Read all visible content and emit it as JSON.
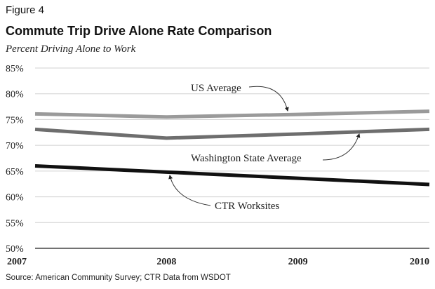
{
  "figure_label": "Figure 4",
  "chart_data": {
    "type": "line",
    "title": "Commute Trip Drive Alone Rate Comparison",
    "ylabel": "Percent Driving Alone to Work",
    "xlabel": "",
    "x": [
      2007,
      2008,
      2009,
      2010
    ],
    "x_tick_labels": [
      "2007",
      "2008",
      "2009",
      "2010"
    ],
    "ylim": [
      50,
      85
    ],
    "y_ticks": [
      50,
      55,
      60,
      65,
      70,
      75,
      80,
      85
    ],
    "y_tick_labels": [
      "50%",
      "55%",
      "60%",
      "65%",
      "70%",
      "75%",
      "80%",
      "85%"
    ],
    "grid": true,
    "series": [
      {
        "name": "US Average",
        "values": [
          76.1,
          75.5,
          76.0,
          76.6
        ],
        "color": "#9a9a9a"
      },
      {
        "name": "Washington State Average",
        "values": [
          73.1,
          71.4,
          72.2,
          73.1
        ],
        "color": "#6e6e6e"
      },
      {
        "name": "CTR Worksites",
        "values": [
          66.0,
          64.8,
          63.6,
          62.4
        ],
        "color": "#111111"
      }
    ],
    "annotations": [
      "US Average",
      "Washington State Average",
      "CTR Worksites"
    ]
  },
  "source": "Source: American Community Survey; CTR Data from WSDOT"
}
